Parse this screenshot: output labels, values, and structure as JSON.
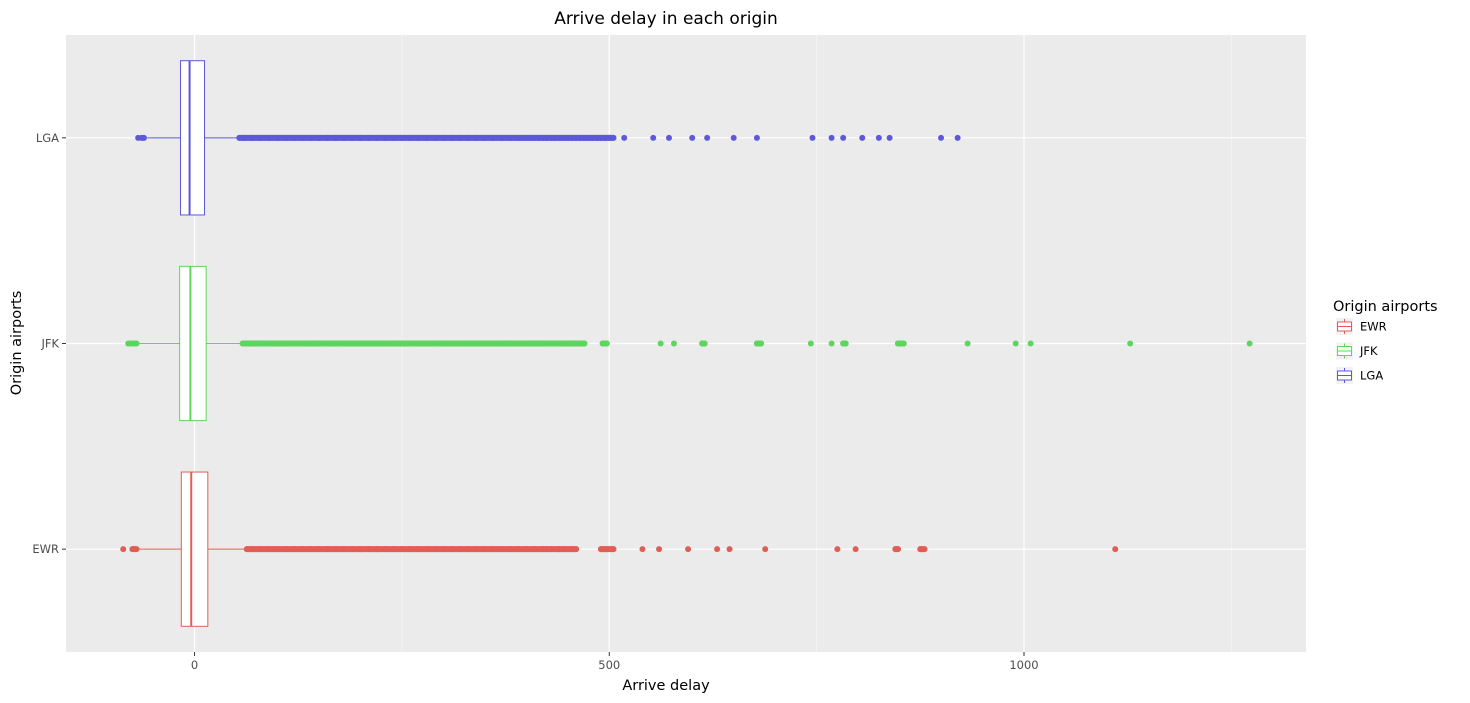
{
  "chart_data": {
    "type": "boxplot",
    "orientation": "horizontal",
    "title": "Arrive delay in each origin",
    "xlabel": "Arrive delay",
    "ylabel": "Origin airports",
    "xlim": [
      -155,
      1340
    ],
    "x_ticks": [
      0,
      500,
      1000
    ],
    "x_tick_labels": [
      "0",
      "500",
      "1000"
    ],
    "categories": [
      "EWR",
      "JFK",
      "LGA"
    ],
    "grid": true,
    "legend": {
      "title": "Origin airports",
      "position": "right",
      "entries": [
        "EWR",
        "JFK",
        "LGA"
      ]
    },
    "series": [
      {
        "name": "EWR",
        "color": "#e15e55",
        "box": {
          "lower_whisker": -70,
          "q1": -16,
          "median": -4,
          "q3": 16,
          "upper_whisker": 63
        },
        "outliers": [
          -86,
          -75,
          -74,
          -73,
          -72,
          -71,
          -70,
          63,
          70,
          80,
          90,
          100,
          110,
          120,
          130,
          140,
          150,
          160,
          170,
          180,
          190,
          200,
          210,
          220,
          230,
          240,
          250,
          260,
          270,
          280,
          290,
          300,
          310,
          320,
          330,
          340,
          350,
          360,
          370,
          380,
          390,
          400,
          410,
          420,
          425,
          430,
          440,
          445,
          455,
          460,
          490,
          495,
          505,
          540,
          560,
          595,
          630,
          645,
          688,
          775,
          797,
          845,
          848,
          875,
          880,
          1110
        ]
      },
      {
        "name": "JFK",
        "color": "#5dd55f",
        "box": {
          "lower_whisker": -75,
          "q1": -18,
          "median": -5,
          "q3": 14,
          "upper_whisker": 58
        },
        "outliers": [
          -80,
          -78,
          -75,
          -73,
          -72,
          -70,
          58,
          65,
          75,
          85,
          95,
          105,
          115,
          125,
          135,
          145,
          155,
          165,
          175,
          185,
          195,
          205,
          215,
          225,
          235,
          245,
          255,
          265,
          275,
          285,
          295,
          305,
          315,
          325,
          335,
          345,
          355,
          365,
          375,
          385,
          395,
          405,
          415,
          420,
          430,
          435,
          445,
          452,
          460,
          470,
          492,
          497,
          562,
          578,
          612,
          615,
          678,
          683,
          743,
          768,
          782,
          785,
          848,
          852,
          855,
          932,
          990,
          1008,
          1128,
          1272
        ]
      },
      {
        "name": "LGA",
        "color": "#5c58d8",
        "box": {
          "lower_whisker": -57,
          "q1": -17,
          "median": -6,
          "q3": 12,
          "upper_whisker": 54
        },
        "outliers": [
          -68,
          -64,
          -62,
          -61,
          54,
          60,
          70,
          80,
          90,
          100,
          110,
          120,
          130,
          140,
          150,
          160,
          170,
          180,
          190,
          200,
          210,
          220,
          230,
          240,
          250,
          260,
          270,
          280,
          290,
          300,
          310,
          320,
          330,
          340,
          350,
          360,
          370,
          380,
          390,
          395,
          400,
          405,
          410,
          415,
          420,
          425,
          430,
          435,
          440,
          445,
          450,
          455,
          460,
          465,
          470,
          475,
          480,
          485,
          490,
          495,
          500,
          505,
          518,
          553,
          572,
          600,
          618,
          650,
          678,
          745,
          768,
          782,
          805,
          825,
          838,
          900,
          920
        ]
      }
    ]
  }
}
